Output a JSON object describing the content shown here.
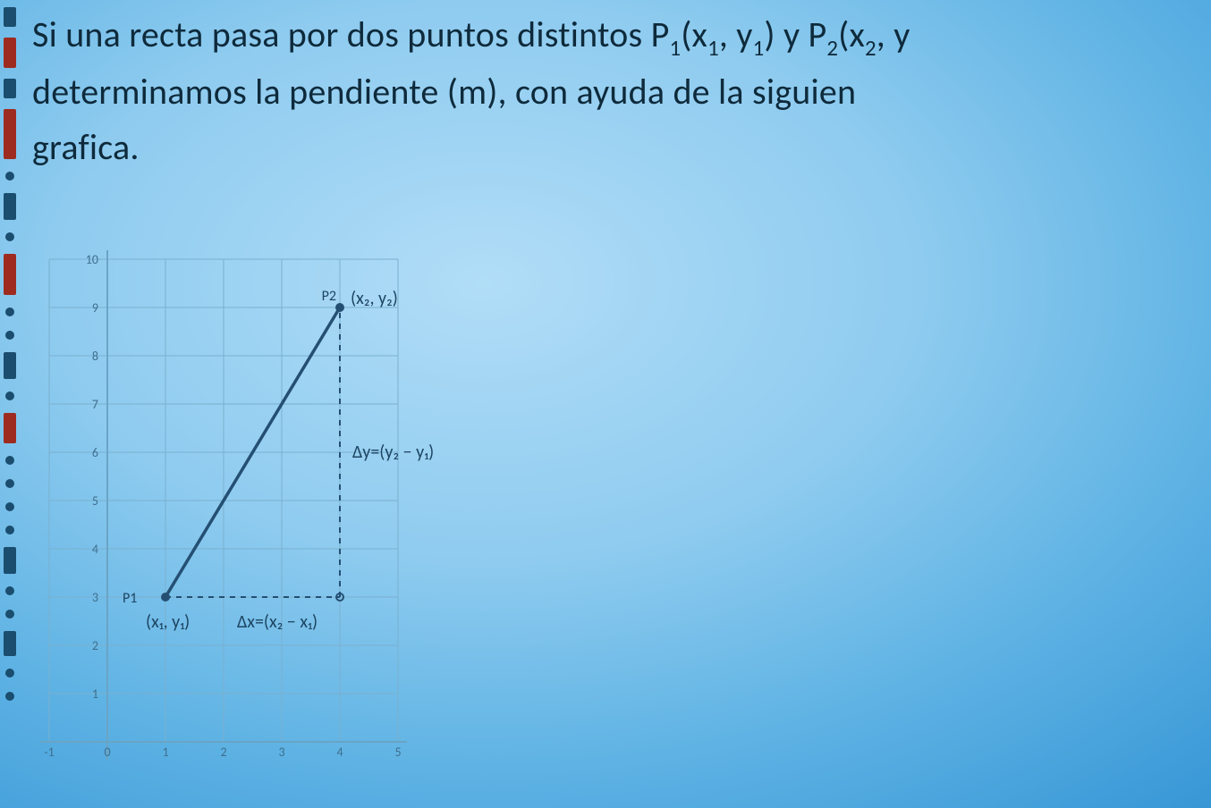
{
  "colors": {
    "bg_center": "#b1ddf7",
    "bg_edge": "#2c87c8",
    "text": "#0e2a3b",
    "grid": "#7ab0cf",
    "axis": "#6aa4c6",
    "tick_label": "#3f6f8e",
    "line": "#244f73",
    "annotation": "#1d4562",
    "edge_dark": "#1a4d6e",
    "edge_red": "#9e2b1f"
  },
  "paragraph": {
    "line1_pre": "Si una recta pasa por dos puntos distintos P",
    "p1_sub": "1",
    "l1_open": "(x",
    "x1_sub": "1",
    "l1_comma": ", y",
    "y1_sub": "1",
    "l1_close": ") y P",
    "p2_sub": "2",
    "l1_open2": "(x",
    "x2_sub": "2",
    "l1_comma2": ", y",
    "line2": "determinamos la pendiente (m), con ayuda de la siguien",
    "line3": "grafica."
  },
  "chart": {
    "type": "line",
    "background": "transparent",
    "grid_color": "#7ab0cf",
    "axis_color": "#6aa4c6",
    "line_color": "#244f73",
    "line_width": 3.5,
    "dash_pattern": "6 6",
    "point_radius": 5,
    "x": {
      "min": -1,
      "max": 5,
      "ticks": [
        -1,
        0,
        1,
        2,
        3,
        4,
        5
      ]
    },
    "y": {
      "min": 0,
      "max": 10,
      "ticks": [
        1,
        2,
        3,
        4,
        5,
        6,
        7,
        8,
        9,
        10
      ]
    },
    "tick_fontsize": 14,
    "ann_fontsize": 20,
    "points": {
      "P1": {
        "x": 1,
        "y": 3,
        "name": "P1"
      },
      "P2": {
        "x": 4,
        "y": 9,
        "name": "P2"
      }
    },
    "labels": {
      "P2_name": "P2",
      "P2_coord": "(x₂, y₂)",
      "P1_name": "P1",
      "P1_coord": "(x₁, y₁)",
      "dy": "Δy=(y₂ − y₁)",
      "dx": "Δx=(x₂ − x₁)"
    }
  }
}
